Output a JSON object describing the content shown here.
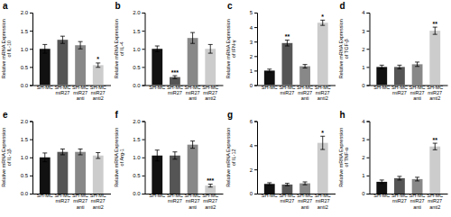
{
  "chart_data": [
    {
      "type": "bar",
      "title": "a",
      "y_label": "Relative mRNA Expression\nof IL-10",
      "categories": [
        "SH-MC",
        "SH-MC\nmiR27",
        "SH-MC\nmiR27\nanti",
        "SH-MC\nmiR27\nanti2"
      ],
      "values": [
        1.0,
        1.25,
        1.1,
        0.55
      ],
      "errors": [
        0.12,
        0.1,
        0.1,
        0.06
      ],
      "colors": [
        "#111111",
        "#555555",
        "#888888",
        "#cccccc"
      ],
      "ylim": [
        0,
        2.0
      ],
      "yticks": [
        {
          "value": 0.0,
          "label": "0.0"
        },
        {
          "value": 0.5,
          "label": "0.5"
        },
        {
          "value": 1.0,
          "label": "1.0"
        },
        {
          "value": 1.5,
          "label": "1.5"
        },
        {
          "value": 2.0,
          "label": "2.0"
        }
      ],
      "annotations": [
        {
          "category": "SH-MC\nmiR27\nanti2",
          "text": "*"
        }
      ]
    },
    {
      "type": "bar",
      "title": "b",
      "y_label": "Relative mRNA Expression\nof IL-4",
      "categories": [
        "SH-MC",
        "SH-MC\nmiR27",
        "SH-MC\nmiR27\nanti",
        "SH-MC\nmiR27\nanti2"
      ],
      "values": [
        1.0,
        0.22,
        1.3,
        1.0
      ],
      "errors": [
        0.08,
        0.04,
        0.15,
        0.12
      ],
      "colors": [
        "#111111",
        "#555555",
        "#888888",
        "#cccccc"
      ],
      "ylim": [
        0,
        2.0
      ],
      "yticks": [
        {
          "value": 0.0,
          "label": "0.0"
        },
        {
          "value": 0.5,
          "label": "0.5"
        },
        {
          "value": 1.0,
          "label": "1.0"
        },
        {
          "value": 1.5,
          "label": "1.5"
        },
        {
          "value": 2.0,
          "label": "2.0"
        }
      ],
      "annotations": [
        {
          "category": "SH-MC\nmiR27",
          "text": "***"
        }
      ]
    },
    {
      "type": "bar",
      "title": "c",
      "y_label": "Relative mRNA Expression\nof IFN-γ",
      "categories": [
        "SH-MC",
        "SH-MC\nmiR27",
        "SH-MC\nmiR27\nanti",
        "SH-MC\nmiR27\nanti2"
      ],
      "values": [
        1.0,
        2.9,
        1.3,
        4.3
      ],
      "errors": [
        0.1,
        0.2,
        0.12,
        0.18
      ],
      "colors": [
        "#111111",
        "#555555",
        "#888888",
        "#cccccc"
      ],
      "ylim": [
        0,
        5.0
      ],
      "yticks": [
        0,
        1,
        2,
        3,
        4,
        5
      ],
      "annotations": [
        {
          "category": "SH-MC\nmiR27",
          "text": "**"
        },
        {
          "category": "SH-MC\nmiR27\nanti2",
          "text": "*"
        }
      ]
    },
    {
      "type": "bar",
      "title": "d",
      "y_label": "Relative mRNA Expression\nof TGF-β",
      "categories": [
        "SH-MC",
        "SH-MC\nmiR27",
        "SH-MC\nmiR27\nanti",
        "SH-MC\nmiR27\nanti2"
      ],
      "values": [
        1.0,
        1.0,
        1.15,
        3.0
      ],
      "errors": [
        0.1,
        0.1,
        0.12,
        0.2
      ],
      "colors": [
        "#111111",
        "#555555",
        "#888888",
        "#cccccc"
      ],
      "ylim": [
        0,
        4.0
      ],
      "yticks": [
        0,
        1,
        2,
        3,
        4
      ],
      "annotations": [
        {
          "category": "SH-MC\nmiR27\nanti2",
          "text": "**"
        }
      ]
    },
    {
      "type": "bar",
      "title": "e",
      "y_label": "Relative mRNA Expression\nof IL-1β",
      "categories": [
        "SH-MC",
        "SH-MC\nmiR27",
        "SH-MC\nmiR27\nanti",
        "SH-MC\nmiR27\nanti2"
      ],
      "values": [
        1.0,
        1.15,
        1.15,
        1.05
      ],
      "errors": [
        0.12,
        0.08,
        0.08,
        0.08
      ],
      "colors": [
        "#111111",
        "#555555",
        "#888888",
        "#cccccc"
      ],
      "ylim": [
        0,
        2.0
      ],
      "yticks": [
        {
          "value": 0.0,
          "label": "0.0"
        },
        {
          "value": 0.5,
          "label": "0.5"
        },
        {
          "value": 1.0,
          "label": "1.0"
        },
        {
          "value": 1.5,
          "label": "1.5"
        },
        {
          "value": 2.0,
          "label": "2.0"
        }
      ]
    },
    {
      "type": "bar",
      "title": "f",
      "y_label": "Relative mRNA Expression\nof Arg-1",
      "categories": [
        "SH-MC",
        "SH-MC\nmiR27",
        "SH-MC\nmiR27\nanti",
        "SH-MC\nmiR27\nanti2"
      ],
      "values": [
        1.05,
        1.05,
        1.35,
        0.22
      ],
      "errors": [
        0.15,
        0.1,
        0.1,
        0.04
      ],
      "colors": [
        "#111111",
        "#555555",
        "#888888",
        "#cccccc"
      ],
      "ylim": [
        0,
        2.0
      ],
      "yticks": [
        {
          "value": 0.0,
          "label": "0.0"
        },
        {
          "value": 0.5,
          "label": "0.5"
        },
        {
          "value": 1.0,
          "label": "1.0"
        },
        {
          "value": 1.5,
          "label": "1.5"
        },
        {
          "value": 2.0,
          "label": "2.0"
        }
      ],
      "annotations": [
        {
          "category": "SH-MC\nmiR27\nanti2",
          "text": "***"
        }
      ]
    },
    {
      "type": "bar",
      "title": "g",
      "y_label": "Relative mRNA Expression\nof IL-12",
      "categories": [
        "SH-MC",
        "SH-MC\nmiR27",
        "SH-MC\nmiR27\nanti",
        "SH-MC\nmiR27\nanti2"
      ],
      "values": [
        0.8,
        0.75,
        0.85,
        4.2
      ],
      "errors": [
        0.1,
        0.1,
        0.12,
        0.55
      ],
      "colors": [
        "#111111",
        "#555555",
        "#888888",
        "#cccccc"
      ],
      "ylim": [
        0,
        6.0
      ],
      "yticks": [
        0,
        2,
        4,
        6
      ],
      "annotations": [
        {
          "category": "SH-MC\nmiR27\nanti2",
          "text": "*"
        }
      ]
    },
    {
      "type": "bar",
      "title": "h",
      "y_label": "Relative mRNA Expression\nof TNF-α",
      "categories": [
        "SH-MC",
        "SH-MC\nmiR27",
        "SH-MC\nmiR27\nanti",
        "SH-MC\nmiR27\nanti2"
      ],
      "values": [
        0.65,
        0.85,
        0.8,
        2.6
      ],
      "errors": [
        0.1,
        0.1,
        0.1,
        0.18
      ],
      "colors": [
        "#111111",
        "#555555",
        "#888888",
        "#cccccc"
      ],
      "ylim": [
        0,
        4.0
      ],
      "yticks": [
        0,
        1,
        2,
        3,
        4
      ],
      "annotations": [
        {
          "category": "SH-MC\nmiR27\nanti2",
          "text": "**"
        }
      ]
    }
  ]
}
